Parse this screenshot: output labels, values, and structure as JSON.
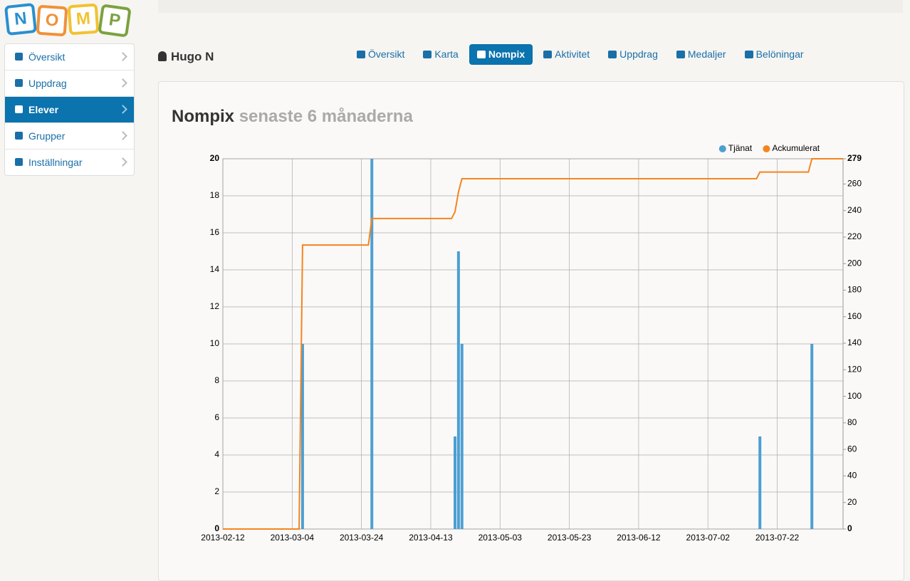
{
  "logo": [
    "N",
    "O",
    "M",
    "P"
  ],
  "sidebar": [
    "Översikt",
    "Uppdrag",
    "Elever",
    "Grupper",
    "Inställningar"
  ],
  "user": {
    "name": "Hugo N"
  },
  "tabs": [
    "Översikt",
    "Karta",
    "Nompix",
    "Aktivitet",
    "Uppdrag",
    "Medaljer",
    "Belöningar"
  ],
  "chart_data": {
    "type": "bar-line",
    "title": "Nompix",
    "subtitle": "senaste 6 månaderna",
    "x": [
      "2013-02-12",
      "2013-03-06",
      "2013-03-07",
      "2013-03-26",
      "2013-03-27",
      "2013-04-19",
      "2013-04-20",
      "2013-04-21",
      "2013-04-22",
      "2013-07-16",
      "2013-07-17",
      "2013-07-31",
      "2013-08-01",
      "2013-08-10"
    ],
    "xlim": [
      "2013-02-12",
      "2013-08-10"
    ],
    "xticks": [
      "2013-02-12",
      "2013-03-04",
      "2013-03-24",
      "2013-04-13",
      "2013-05-03",
      "2013-05-23",
      "2013-06-12",
      "2013-07-02",
      "2013-07-22"
    ],
    "series": [
      {
        "name": "Tjänat",
        "type": "bar",
        "color": "#4d9fd2",
        "values": [
          0,
          0,
          10,
          0,
          20,
          0,
          5,
          15,
          10,
          0,
          5,
          0,
          10,
          0
        ]
      },
      {
        "name": "Ackumulerat",
        "type": "line",
        "axis": "y2",
        "color": "#f5841f",
        "values": [
          0,
          0,
          214,
          214,
          234,
          234,
          239,
          254,
          264,
          264,
          269,
          269,
          279,
          279
        ]
      }
    ],
    "ylim": [
      0,
      20
    ],
    "yticks": [
      0,
      2,
      4,
      6,
      8,
      10,
      12,
      14,
      16,
      18,
      20
    ],
    "y2lim": [
      0,
      279
    ],
    "y2ticks": [
      0,
      20,
      40,
      60,
      80,
      100,
      120,
      140,
      160,
      180,
      200,
      220,
      240,
      260,
      279
    ],
    "grid": true,
    "legend": "top-right"
  }
}
